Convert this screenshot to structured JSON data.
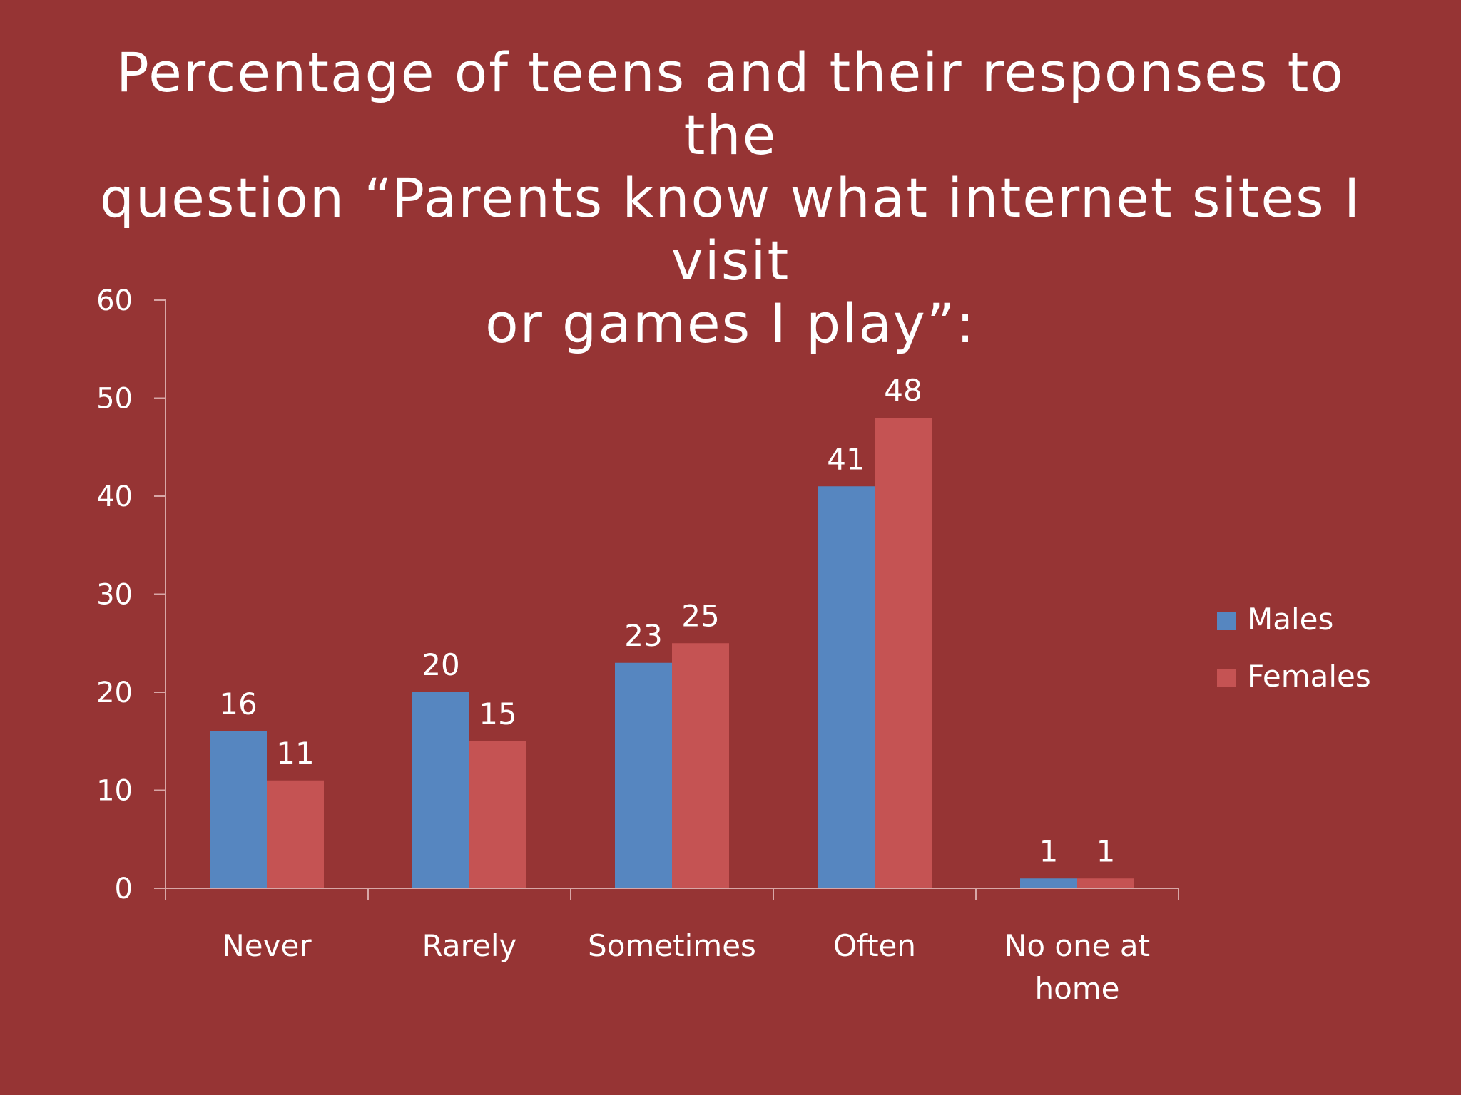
{
  "slide": {
    "background": "#963434",
    "title_lines": [
      "Percentage of teens and their responses to the",
      "question “Parents know what internet sites I visit",
      "or games I play”:"
    ]
  },
  "chart_data": {
    "type": "bar",
    "categories": [
      "Never",
      "Rarely",
      "Sometimes",
      "Often",
      "No one at home"
    ],
    "category_label_lines": [
      [
        "Never"
      ],
      [
        "Rarely"
      ],
      [
        "Sometimes"
      ],
      [
        "Often"
      ],
      [
        "No one at",
        "home"
      ]
    ],
    "series": [
      {
        "name": "Males",
        "values": [
          16,
          20,
          23,
          41,
          1
        ],
        "color": "#5686C0"
      },
      {
        "name": "Females",
        "values": [
          11,
          15,
          25,
          48,
          1
        ],
        "color": "#C55353"
      }
    ],
    "ylim": [
      0,
      60
    ],
    "yticks": [
      0,
      10,
      20,
      30,
      40,
      50,
      60
    ],
    "grid": false,
    "legend": "right",
    "data_labels": true,
    "axis_color": "#d8a6a6"
  }
}
